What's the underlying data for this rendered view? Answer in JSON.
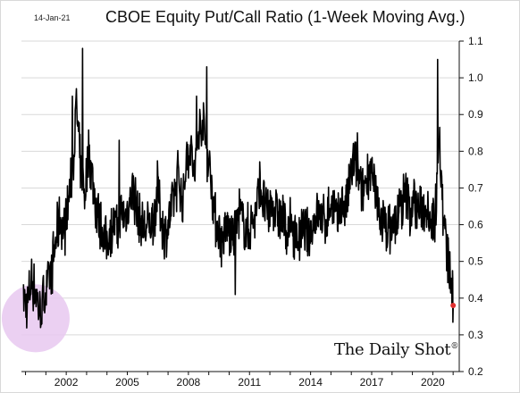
{
  "date_stamp": "14-Jan-21",
  "brand": "The Daily Shot",
  "brand_mark": "®",
  "colors": {
    "line": "#000000",
    "last_point": "#e03030",
    "highlight": "#e8c8f0",
    "grid": "#d9d9d9"
  },
  "chart_data": {
    "type": "line",
    "title": "CBOE Equity Put/Call Ratio (1-Week Moving Avg.)",
    "xlabel": "",
    "ylabel": "",
    "xlim": [
      1999.8,
      2021.3
    ],
    "ylim": [
      0.2,
      1.1
    ],
    "y_axis_side": "right",
    "yticks": [
      0.2,
      0.3,
      0.4,
      0.5,
      0.6,
      0.7,
      0.8,
      0.9,
      1.0,
      1.1
    ],
    "ytick_labels": [
      "0.2",
      "0.3",
      "0.4",
      "0.5",
      "0.6",
      "0.7",
      "0.8",
      "0.9",
      "1.0",
      "1.1"
    ],
    "xticks": [
      2002,
      2005,
      2008,
      2011,
      2014,
      2017,
      2020
    ],
    "xtick_labels": [
      "2002",
      "2005",
      "2008",
      "2011",
      "2014",
      "2017",
      "2020"
    ],
    "grid": "horizontal",
    "highlight_region": {
      "x": 2000.5,
      "y": 0.345,
      "note": "circled area"
    },
    "series": [
      {
        "x": [
          1999.9,
          2000.1,
          2000.3,
          2000.5,
          2000.7,
          2000.9,
          2001.1,
          2001.3,
          2001.5,
          2001.7,
          2001.9,
          2002.1,
          2002.3,
          2002.5,
          2002.7,
          2002.9,
          2003.1,
          2003.3,
          2003.5,
          2003.7,
          2003.9,
          2004.1,
          2004.3,
          2004.5,
          2004.7,
          2004.9,
          2005.1,
          2005.3,
          2005.5,
          2005.7,
          2005.9,
          2006.1,
          2006.3,
          2006.5,
          2006.7,
          2006.9,
          2007.1,
          2007.3,
          2007.5,
          2007.7,
          2007.9,
          2008.1,
          2008.3,
          2008.5,
          2008.7,
          2008.9,
          2009.1,
          2009.3,
          2009.5,
          2009.7,
          2009.9,
          2010.1,
          2010.3,
          2010.5,
          2010.7,
          2010.9,
          2011.1,
          2011.3,
          2011.5,
          2011.7,
          2011.9,
          2012.1,
          2012.3,
          2012.5,
          2012.7,
          2012.9,
          2013.1,
          2013.3,
          2013.5,
          2013.7,
          2013.9,
          2014.1,
          2014.3,
          2014.5,
          2014.7,
          2014.9,
          2015.1,
          2015.3,
          2015.5,
          2015.7,
          2015.9,
          2016.1,
          2016.3,
          2016.5,
          2016.7,
          2016.9,
          2017.1,
          2017.3,
          2017.5,
          2017.7,
          2017.9,
          2018.1,
          2018.3,
          2018.5,
          2018.7,
          2018.9,
          2019.1,
          2019.3,
          2019.5,
          2019.7,
          2019.9,
          2020.1,
          2020.3,
          2020.5,
          2020.7,
          2020.9,
          2021.0
        ],
        "y": [
          0.4,
          0.38,
          0.45,
          0.42,
          0.36,
          0.4,
          0.44,
          0.48,
          0.56,
          0.62,
          0.58,
          0.66,
          0.74,
          0.92,
          0.75,
          0.68,
          0.8,
          0.72,
          0.64,
          0.6,
          0.55,
          0.57,
          0.61,
          0.58,
          0.63,
          0.62,
          0.66,
          0.7,
          0.63,
          0.6,
          0.58,
          0.6,
          0.62,
          0.7,
          0.6,
          0.57,
          0.62,
          0.68,
          0.74,
          0.65,
          0.78,
          0.82,
          0.72,
          0.85,
          0.88,
          0.8,
          0.74,
          0.62,
          0.58,
          0.55,
          0.6,
          0.56,
          0.58,
          0.63,
          0.6,
          0.58,
          0.6,
          0.63,
          0.72,
          0.66,
          0.62,
          0.66,
          0.64,
          0.62,
          0.6,
          0.58,
          0.6,
          0.56,
          0.57,
          0.58,
          0.56,
          0.6,
          0.63,
          0.62,
          0.6,
          0.64,
          0.66,
          0.6,
          0.66,
          0.64,
          0.7,
          0.78,
          0.74,
          0.68,
          0.72,
          0.76,
          0.7,
          0.64,
          0.62,
          0.6,
          0.58,
          0.6,
          0.62,
          0.66,
          0.68,
          0.64,
          0.66,
          0.64,
          0.64,
          0.66,
          0.62,
          0.6,
          0.86,
          0.64,
          0.52,
          0.44,
          0.38
        ]
      }
    ],
    "spikes": [
      {
        "x": 2002.3,
        "y": 0.95
      },
      {
        "x": 2002.8,
        "y": 1.08
      },
      {
        "x": 2004.6,
        "y": 0.83
      },
      {
        "x": 2008.4,
        "y": 0.95
      },
      {
        "x": 2008.9,
        "y": 1.03
      },
      {
        "x": 2010.3,
        "y": 0.41
      },
      {
        "x": 2016.3,
        "y": 0.85
      },
      {
        "x": 2020.25,
        "y": 1.05
      },
      {
        "x": 2000.75,
        "y": 0.32
      }
    ],
    "last_value": {
      "x": 2021.0,
      "y": 0.38
    }
  }
}
